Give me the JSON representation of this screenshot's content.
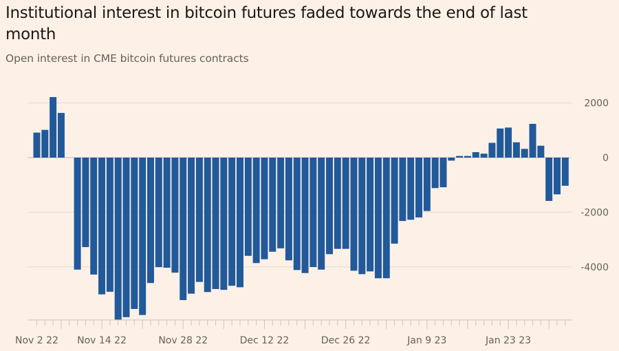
{
  "chart_data": {
    "type": "bar",
    "title": "Institutional interest in bitcoin futures faded towards the end of last month",
    "subtitle": "Open interest in CME bitcoin futures contracts",
    "xlabel": "",
    "ylabel": "",
    "ylim": [
      -5930,
      2215
    ],
    "yticks": [
      2000,
      0,
      -2000,
      -4000
    ],
    "ytick_labels": [
      "2000",
      "0",
      "-2000",
      "-4000"
    ],
    "grid": true,
    "legend": "none",
    "bar_color": "#21599a",
    "background_color": "#fdf1e7",
    "x_tick_labels": [
      {
        "label": "Nov 2 22",
        "date": "2022-11-02"
      },
      {
        "label": "Nov 14 22",
        "date": "2022-11-14"
      },
      {
        "label": "Nov 28 22",
        "date": "2022-11-28"
      },
      {
        "label": "Dec 12 22",
        "date": "2022-12-12"
      },
      {
        "label": "Dec 26 22",
        "date": "2022-12-26"
      },
      {
        "label": "Jan 9 23",
        "date": "2023-01-09"
      },
      {
        "label": "Jan 23 23",
        "date": "2023-01-23"
      }
    ],
    "categories": [
      "2022-11-02",
      "2022-11-03",
      "2022-11-04",
      "2022-11-07",
      "2022-11-08",
      "2022-11-09",
      "2022-11-10",
      "2022-11-11",
      "2022-11-14",
      "2022-11-15",
      "2022-11-16",
      "2022-11-17",
      "2022-11-18",
      "2022-11-21",
      "2022-11-22",
      "2022-11-23",
      "2022-11-24",
      "2022-11-25",
      "2022-11-28",
      "2022-11-29",
      "2022-11-30",
      "2022-12-01",
      "2022-12-02",
      "2022-12-05",
      "2022-12-06",
      "2022-12-07",
      "2022-12-08",
      "2022-12-09",
      "2022-12-12",
      "2022-12-13",
      "2022-12-14",
      "2022-12-15",
      "2022-12-16",
      "2022-12-19",
      "2022-12-20",
      "2022-12-21",
      "2022-12-22",
      "2022-12-23",
      "2022-12-26",
      "2022-12-27",
      "2022-12-28",
      "2022-12-29",
      "2022-12-30",
      "2023-01-02",
      "2023-01-03",
      "2023-01-04",
      "2023-01-05",
      "2023-01-06",
      "2023-01-09",
      "2023-01-10",
      "2023-01-11",
      "2023-01-12",
      "2023-01-13",
      "2023-01-16",
      "2023-01-17",
      "2023-01-18",
      "2023-01-19",
      "2023-01-20",
      "2023-01-23",
      "2023-01-24",
      "2023-01-25",
      "2023-01-26",
      "2023-01-27",
      "2023-01-30",
      "2023-01-31",
      "2023-02-01"
    ],
    "values": [
      915,
      1015,
      2215,
      1635,
      null,
      -4100,
      -3275,
      -4280,
      -5005,
      -4910,
      -5930,
      -5840,
      -5540,
      -5760,
      -4590,
      -4010,
      -4030,
      -4210,
      -5215,
      -4980,
      -4550,
      -4920,
      -4810,
      -4840,
      -4690,
      -4745,
      -3595,
      -3860,
      -3720,
      -3445,
      -3320,
      -3760,
      -4115,
      -4225,
      -4005,
      -4100,
      -3535,
      -3340,
      -3340,
      -4140,
      -4265,
      -4165,
      -4415,
      -4415,
      -3150,
      -2320,
      -2275,
      -2190,
      -1955,
      -1115,
      -1085,
      -110,
      60,
      60,
      200,
      145,
      540,
      1065,
      1100,
      560,
      320,
      1235,
      435,
      -1585,
      -1345,
      -1030
    ]
  }
}
